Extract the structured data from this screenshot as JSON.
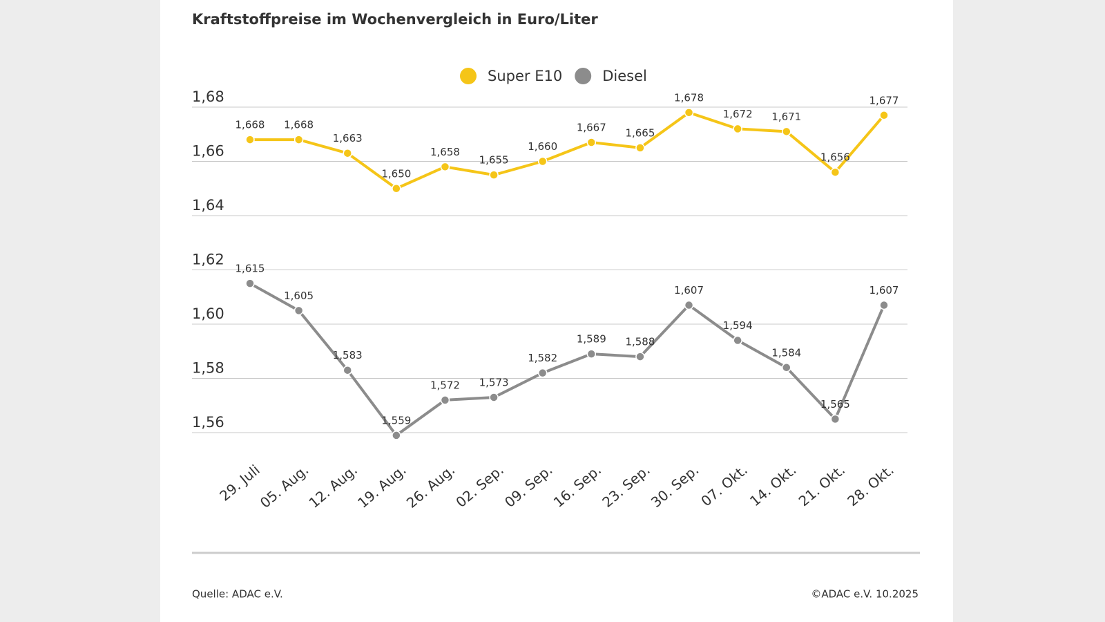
{
  "chart_data": {
    "type": "line",
    "title": "Kraftstoffpreise im Wochenvergleich in Euro/Liter",
    "categories": [
      "29. Juli",
      "05. Aug.",
      "12. Aug.",
      "19. Aug.",
      "26. Aug.",
      "02. Sep.",
      "09. Sep.",
      "16. Sep.",
      "23. Sep.",
      "30. Sep.",
      "07. Okt.",
      "14. Okt.",
      "21. Okt.",
      "28. Okt."
    ],
    "series": [
      {
        "name": "Super E10",
        "color": "#f5c518",
        "values": [
          1.668,
          1.668,
          1.663,
          1.65,
          1.658,
          1.655,
          1.66,
          1.667,
          1.665,
          1.678,
          1.672,
          1.671,
          1.656,
          1.677
        ],
        "value_labels": [
          "1,668",
          "1,668",
          "1,663",
          "1,650",
          "1,658",
          "1,655",
          "1,660",
          "1,667",
          "1,665",
          "1,678",
          "1,672",
          "1,671",
          "1,656",
          "1,677"
        ]
      },
      {
        "name": "Diesel",
        "color": "#8c8c8c",
        "values": [
          1.615,
          1.605,
          1.583,
          1.559,
          1.572,
          1.573,
          1.582,
          1.589,
          1.588,
          1.607,
          1.594,
          1.584,
          1.565,
          1.607
        ],
        "value_labels": [
          "1,615",
          "1,605",
          "1,583",
          "1,559",
          "1,572",
          "1,573",
          "1,582",
          "1,589",
          "1,588",
          "1,607",
          "1,594",
          "1,584",
          "1,565",
          "1,607"
        ]
      }
    ],
    "ylim": [
      1.56,
      1.68
    ],
    "yticks": [
      {
        "value": 1.56,
        "label": "1,56"
      },
      {
        "value": 1.58,
        "label": "1,58"
      },
      {
        "value": 1.6,
        "label": "1,60"
      },
      {
        "value": 1.62,
        "label": "1,62"
      },
      {
        "value": 1.64,
        "label": "1,64"
      },
      {
        "value": 1.66,
        "label": "1,66"
      },
      {
        "value": 1.68,
        "label": "1,68"
      }
    ],
    "grid": true,
    "legend": "top",
    "source": "Quelle: ADAC e.V.",
    "copyright": "©ADAC e.V. 10.2025"
  }
}
